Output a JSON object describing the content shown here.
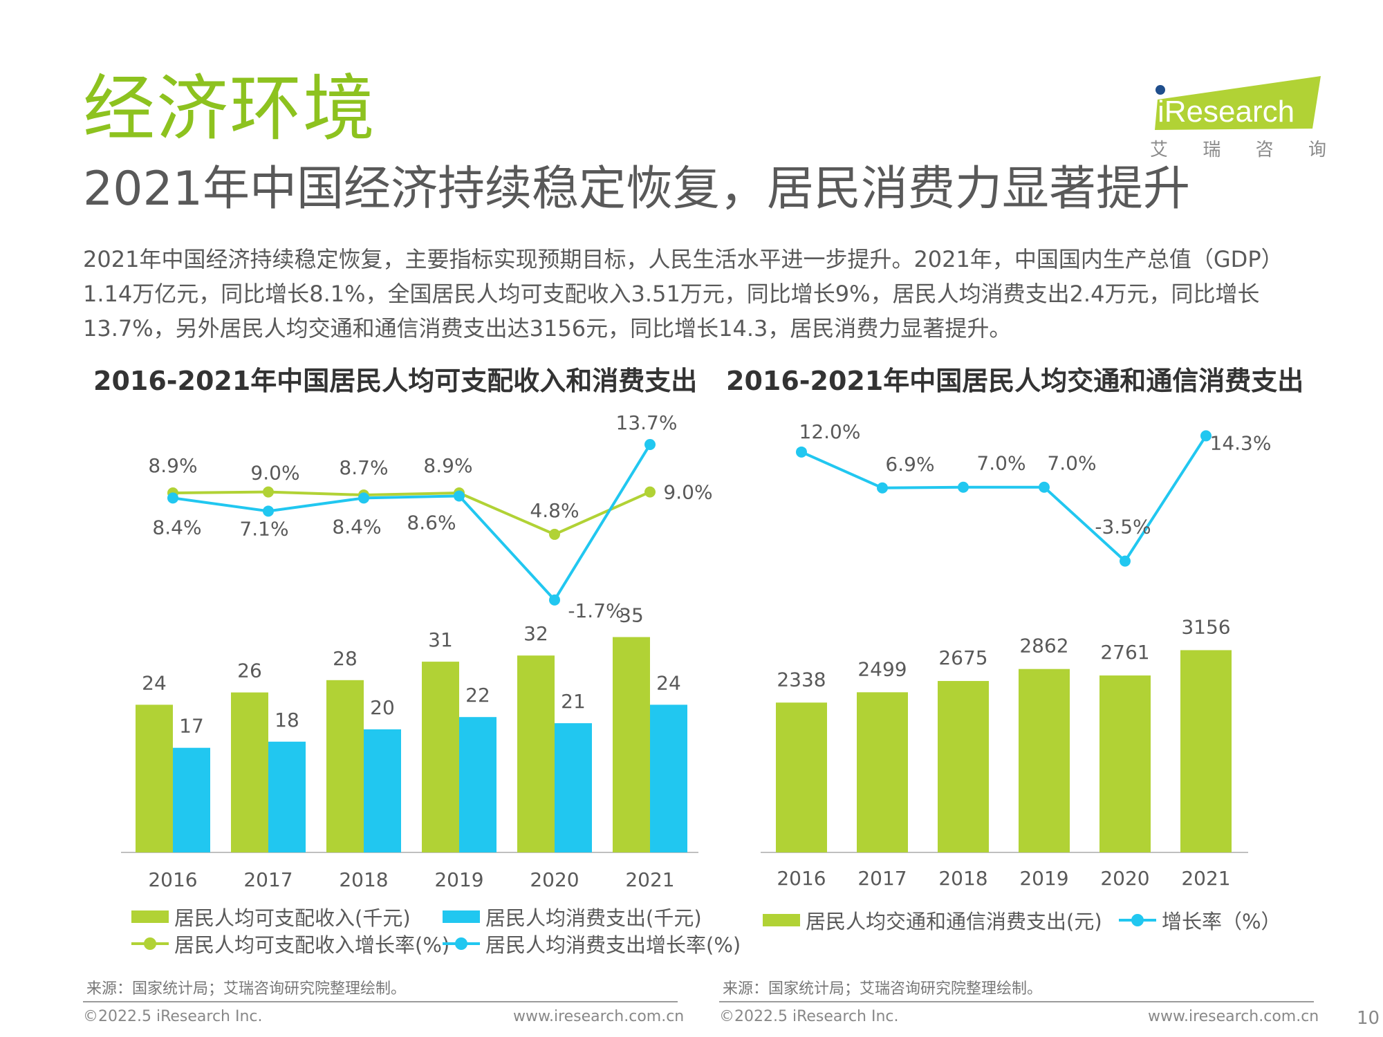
{
  "header": {
    "section_title": "经济环境",
    "headline": "2021年中国经济持续稳定恢复，居民消费力显著提升",
    "logo_text": "iResearch",
    "logo_sub": [
      "艾",
      "瑞",
      "咨",
      "询"
    ]
  },
  "summary": "2021年中国经济持续稳定恢复，主要指标实现预期目标，人民生活水平进一步提升。2021年，中国国内生产总值（GDP）1.14万亿元，同比增长8.1%，全国居民人均可支配收入3.51万元，同比增长9%，居民人均消费支出2.4万元，同比增长13.7%，另外居民人均交通和通信消费支出达3156元，同比增长14.3，居民消费力显著提升。",
  "colors": {
    "green": "#b1d235",
    "blue": "#21c7f0",
    "title_green": "#8dc21f"
  },
  "chart_data": [
    {
      "type": "bar",
      "title": "2016-2021年中国居民人均可支配收入和消费支出",
      "categories": [
        "2016",
        "2017",
        "2018",
        "2019",
        "2020",
        "2021"
      ],
      "series": [
        {
          "name": "居民人均可支配收入(千元)",
          "type": "bar",
          "values": [
            24,
            26,
            28,
            31,
            32,
            35
          ],
          "labels": [
            "24",
            "26",
            "28",
            "31",
            "32",
            "35"
          ]
        },
        {
          "name": "居民人均消费支出(千元)",
          "type": "bar",
          "values": [
            17,
            18,
            20,
            22,
            21,
            24
          ],
          "labels": [
            "17",
            "18",
            "20",
            "22",
            "21",
            "24"
          ]
        },
        {
          "name": "居民人均可支配收入增长率(%)",
          "type": "line",
          "values": [
            8.9,
            9.0,
            8.7,
            8.9,
            4.8,
            9.0
          ],
          "labels": [
            "8.9%",
            "9.0%",
            "8.7%",
            "8.9%",
            "4.8%",
            "9.0%"
          ]
        },
        {
          "name": "居民人均消费支出增长率(%)",
          "type": "line",
          "values": [
            8.4,
            7.1,
            8.4,
            8.6,
            -1.7,
            13.7
          ],
          "labels": [
            "8.4%",
            "7.1%",
            "8.4%",
            "8.6%",
            "-1.7%",
            "13.7%"
          ]
        }
      ],
      "source": "来源：国家统计局；艾瑞咨询研究院整理绘制。"
    },
    {
      "type": "bar",
      "title": "2016-2021年中国居民人均交通和通信消费支出",
      "categories": [
        "2016",
        "2017",
        "2018",
        "2019",
        "2020",
        "2021"
      ],
      "series": [
        {
          "name": "居民人均交通和通信消费支出(元)",
          "type": "bar",
          "values": [
            2338,
            2499,
            2675,
            2862,
            2761,
            3156
          ],
          "labels": [
            "2338",
            "2499",
            "2675",
            "2862",
            "2761",
            "3156"
          ]
        },
        {
          "name": "增长率（%）",
          "type": "line",
          "values": [
            12.0,
            6.9,
            7.0,
            7.0,
            -3.5,
            14.3
          ],
          "labels": [
            "12.0%",
            "6.9%",
            "7.0%",
            "7.0%",
            "-3.5%",
            "14.3%"
          ]
        }
      ],
      "source": "来源：国家统计局；艾瑞咨询研究院整理绘制。"
    }
  ],
  "footer": {
    "copyright": "©2022.5 iResearch Inc.",
    "website": "www.iresearch.com.cn",
    "page_number": "10"
  }
}
